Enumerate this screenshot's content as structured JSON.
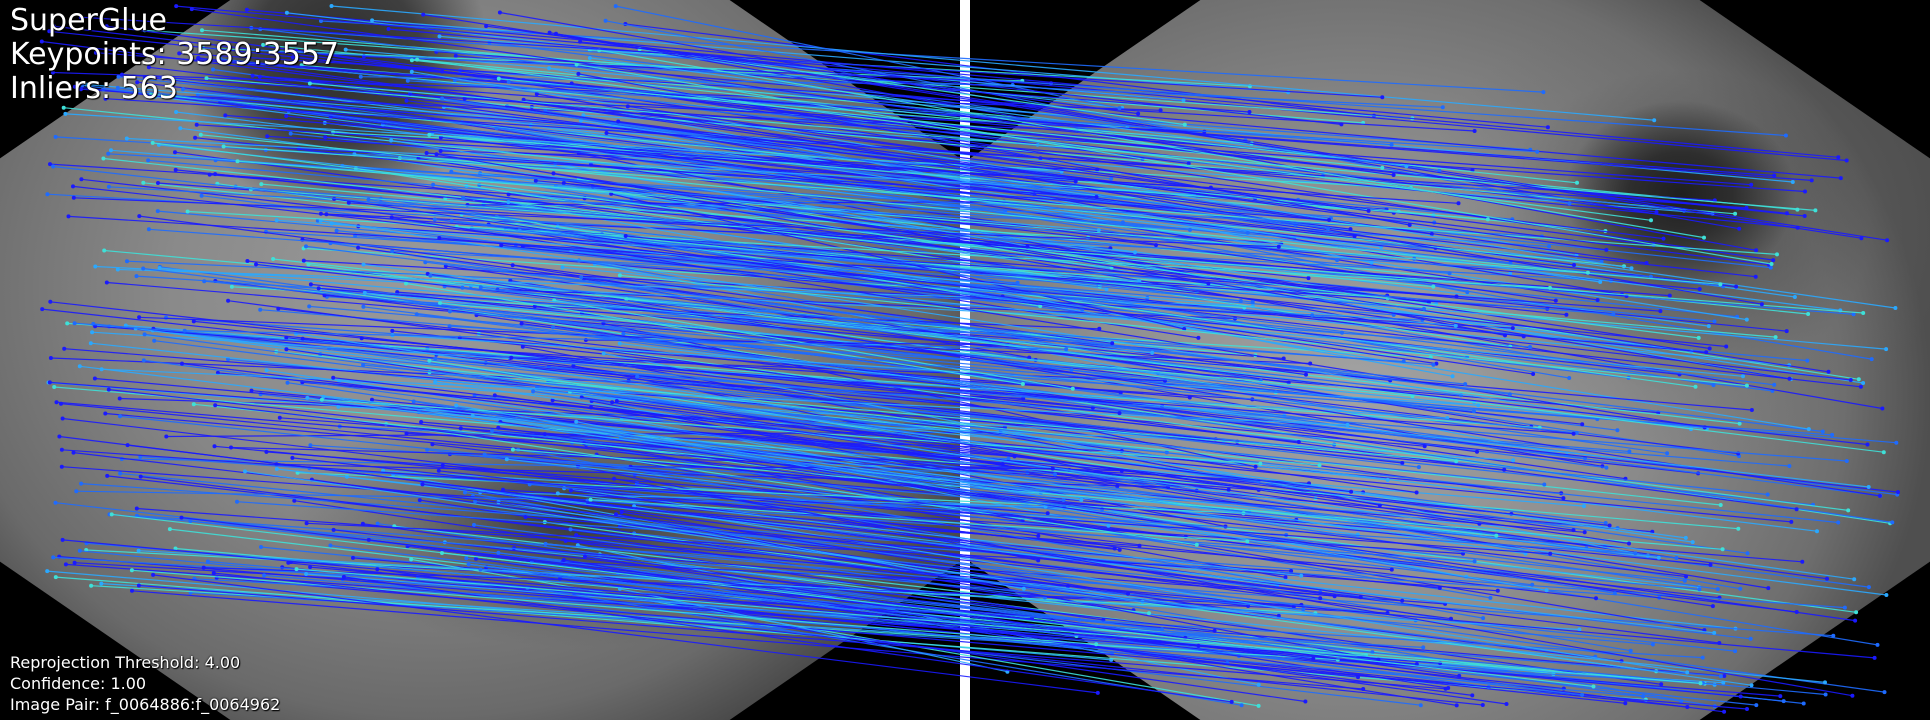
{
  "header": {
    "method": "SuperGlue",
    "keypoints_label": "Keypoints:",
    "keypoints_value": "3589:3557",
    "inliers_label": "Inliers:",
    "inliers_value": "563"
  },
  "footer": {
    "threshold_label": "Reprojection Threshold:",
    "threshold_value": "4.00",
    "confidence_label": "Confidence:",
    "confidence_value": "1.00",
    "pair_label": "Image Pair:",
    "pair_value": "f_0064886:f_0064962"
  },
  "colors": {
    "divider": "#ffffff",
    "line_dark": "#1a1aff",
    "line_mid": "#1e6bff",
    "line_light": "#2aa8ff",
    "line_cyan": "#3ee0d8",
    "text": "#ffffff"
  },
  "match_lines": {
    "count": 563
  }
}
